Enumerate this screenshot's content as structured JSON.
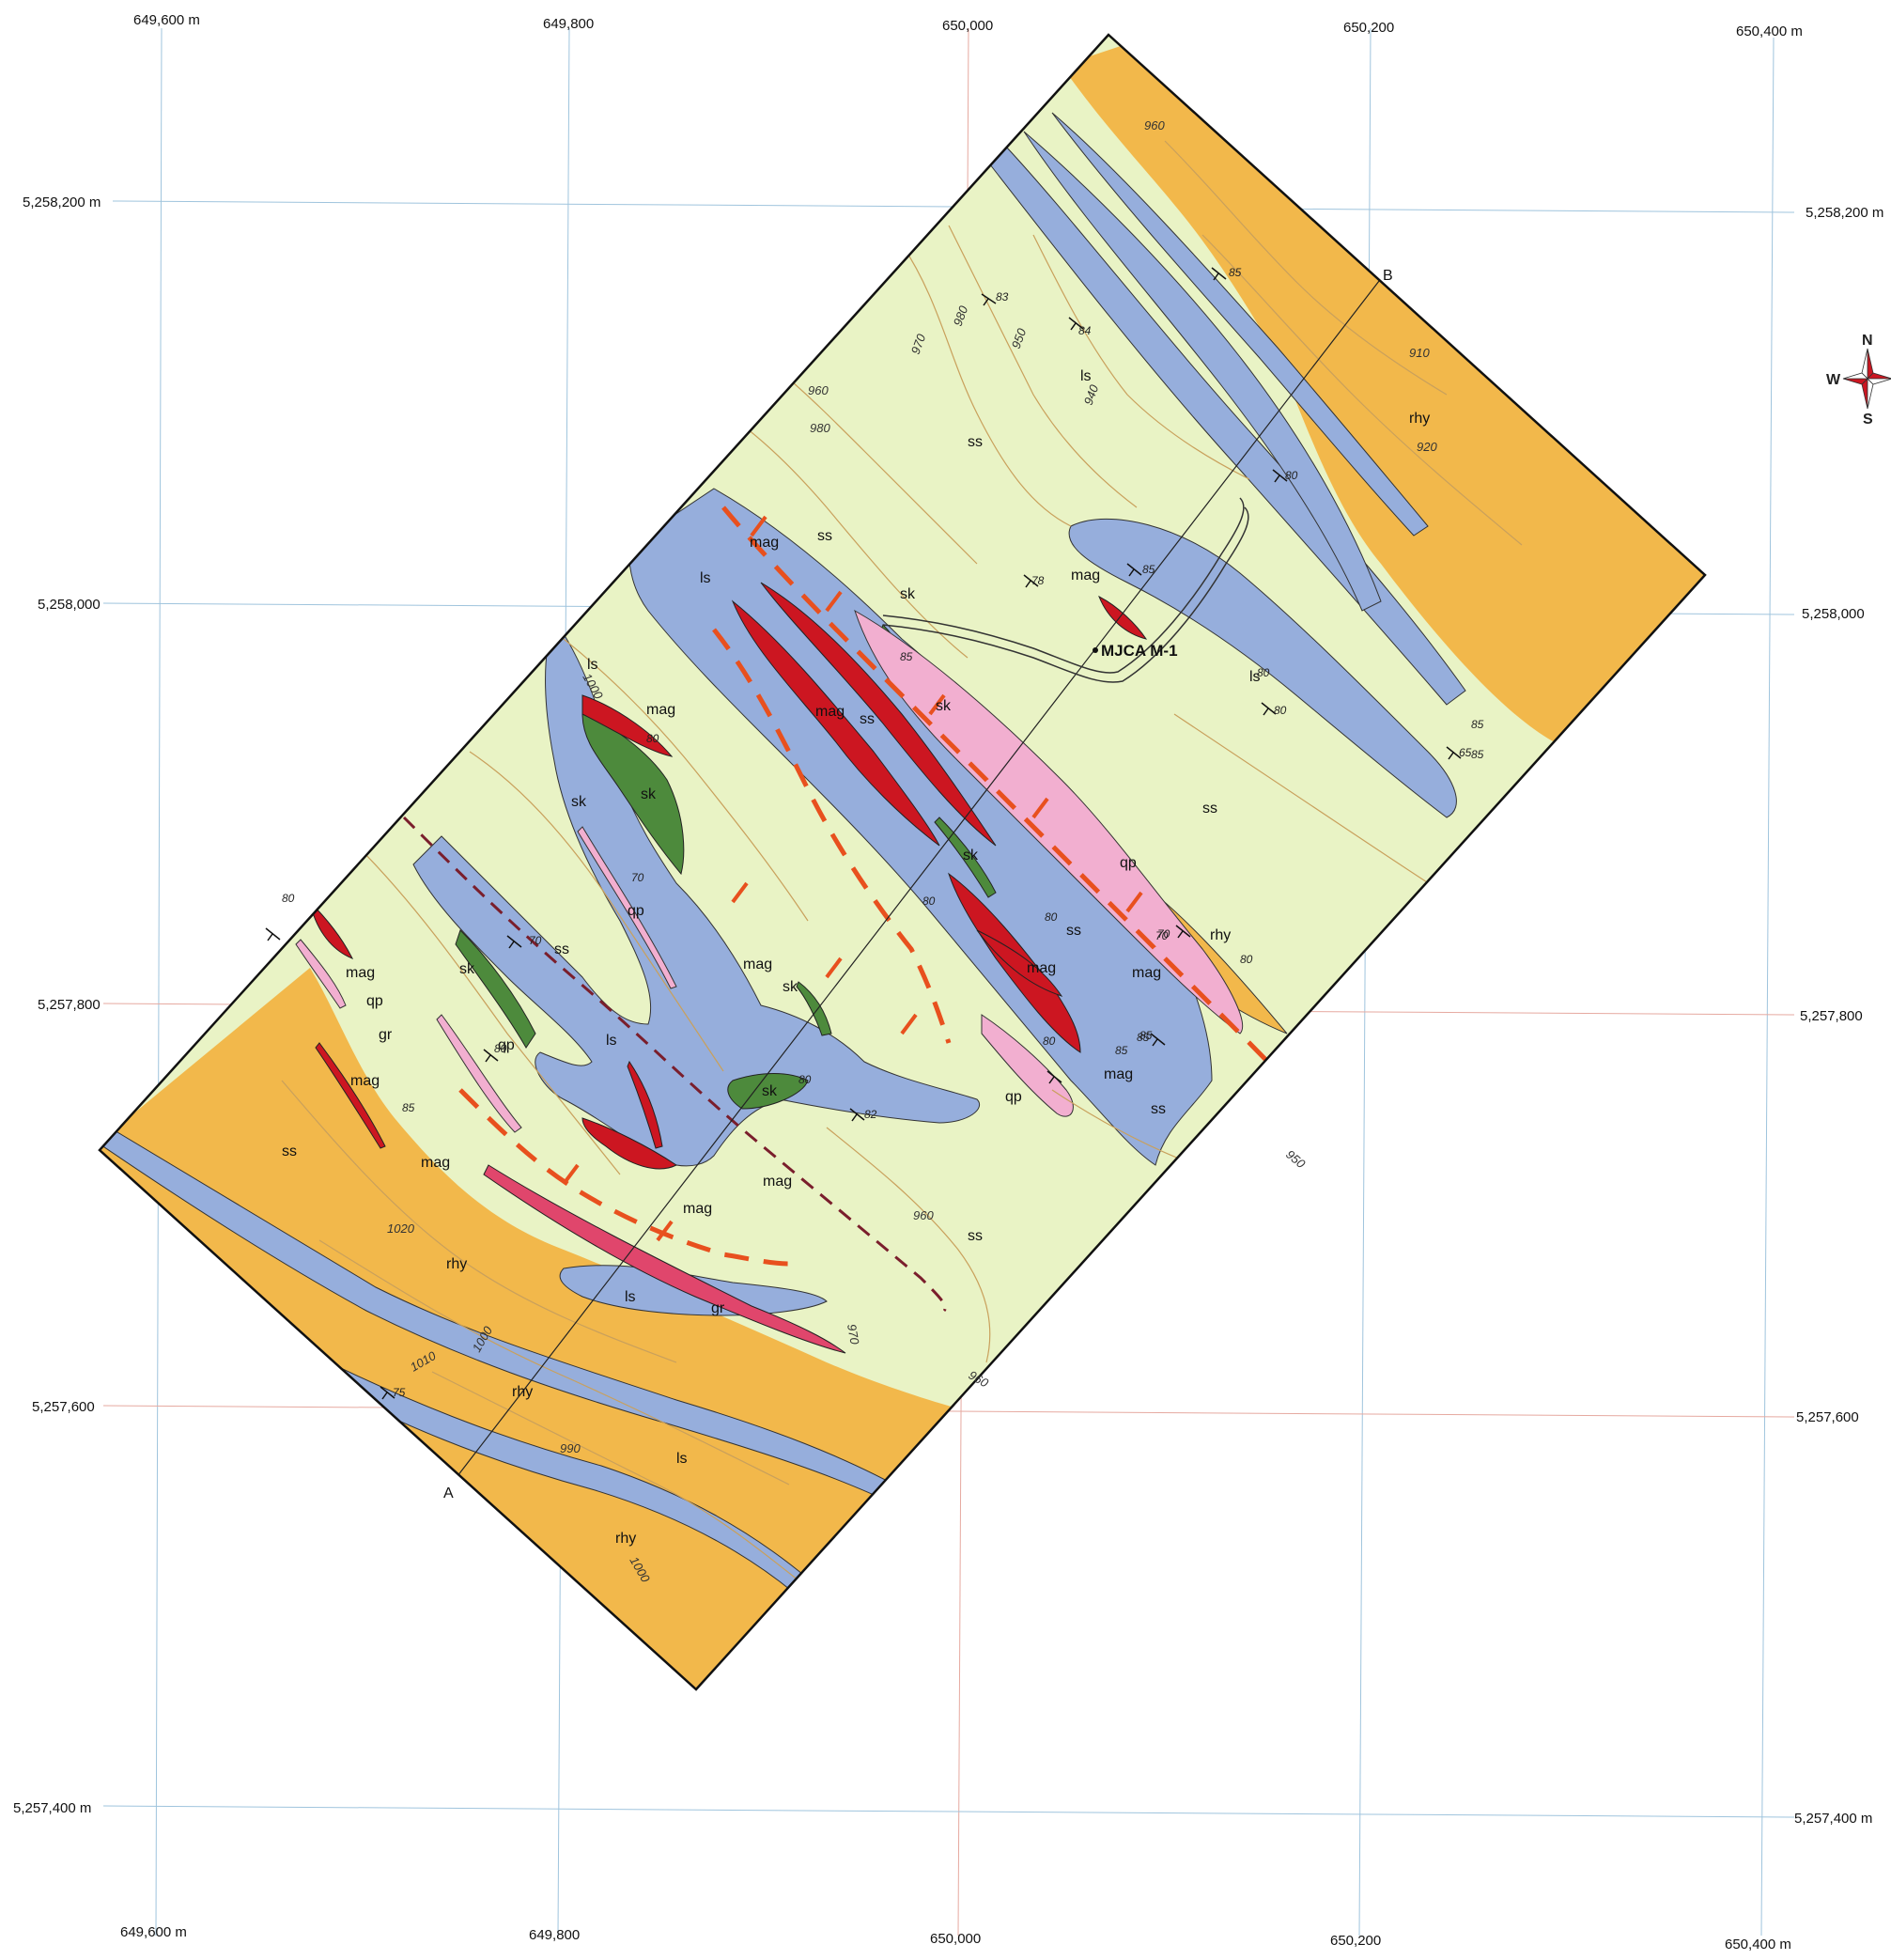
{
  "colors": {
    "background": "#ffffff",
    "sandstone": "#e9f3c5",
    "rhyolite": "#f2b84b",
    "limestone": "#96aedc",
    "magnetite": "#cc1621",
    "skarn": "#4d8a3c",
    "quartz_porphyry": "#f2afd0",
    "granite": "#e0466c",
    "contours": "#c9a05c",
    "fault": "#e8501e",
    "inferred_contact": "#7a1e2c",
    "grid_blue": "#9fc4dd",
    "grid_red": "#e6a9a0"
  },
  "grid": {
    "top_x_labels": [
      "649,600 m",
      "649,800",
      "650,000",
      "650,200",
      "650,400 m"
    ],
    "bottom_x_labels": [
      "649,600 m",
      "649,800",
      "650,000",
      "650,200",
      "650,400 m"
    ],
    "left_y_labels": [
      "5,258,200 m",
      "5,258,000",
      "5,257,800",
      "5,257,600",
      "5,257,400 m"
    ],
    "right_y_labels": [
      "5,258,200 m",
      "5,258,000",
      "5,257,800",
      "5,257,600",
      "5,257,400 m"
    ]
  },
  "compass": {
    "north": "N",
    "south": "S",
    "west": "W",
    "icon": "compass-rose-icon"
  },
  "section_line": {
    "start_label": "A",
    "end_label": "B"
  },
  "drillhole": {
    "label": "MJCA M-1"
  },
  "unit_labels": {
    "ss": "ss",
    "ls": "ls",
    "rhy": "rhy",
    "mag": "mag",
    "sk": "sk",
    "qp": "qp",
    "gr": "gr"
  },
  "contour_labels": [
    "960",
    "910",
    "920",
    "970",
    "980",
    "950",
    "940",
    "960",
    "980",
    "1020",
    "1010",
    "1000",
    "990",
    "1000",
    "950",
    "960",
    "960",
    "970",
    "1000"
  ],
  "dip_labels": [
    "85",
    "83",
    "84",
    "80",
    "80",
    "85",
    "65",
    "70",
    "78",
    "80",
    "85",
    "70",
    "80",
    "70",
    "80",
    "80",
    "85",
    "85",
    "82",
    "80",
    "85",
    "80",
    "75",
    "80",
    "80",
    "85",
    "80",
    "70",
    "85",
    "85"
  ]
}
